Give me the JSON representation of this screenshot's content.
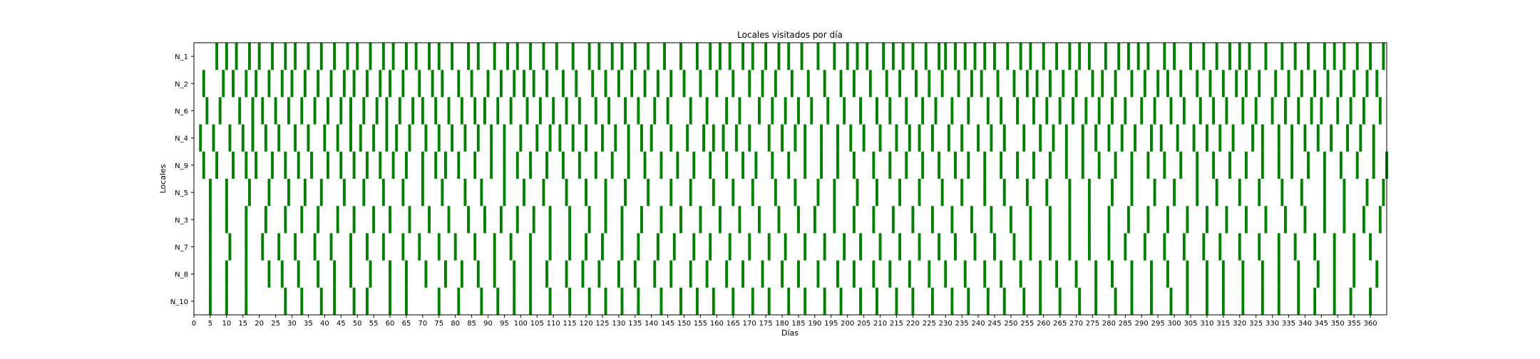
{
  "chart_data": {
    "type": "heatmap",
    "title": "Locales visitados por día",
    "xlabel": "Días",
    "ylabel": "Locales",
    "categories": [
      "N_1",
      "N_2",
      "N_6",
      "N_4",
      "N_9",
      "N_5",
      "N_3",
      "N_7",
      "N_8",
      "N_10"
    ],
    "xlim": [
      0,
      365
    ],
    "xticks": [
      0,
      5,
      10,
      15,
      20,
      25,
      30,
      35,
      40,
      45,
      50,
      55,
      60,
      65,
      70,
      75,
      80,
      85,
      90,
      95,
      100,
      105,
      110,
      115,
      120,
      125,
      130,
      135,
      140,
      145,
      150,
      155,
      160,
      165,
      170,
      175,
      180,
      185,
      190,
      195,
      200,
      205,
      210,
      215,
      220,
      225,
      230,
      235,
      240,
      245,
      250,
      255,
      260,
      265,
      270,
      275,
      280,
      285,
      290,
      295,
      300,
      305,
      310,
      315,
      320,
      325,
      330,
      335,
      340,
      345,
      350,
      355,
      360
    ],
    "bar_color": "#008000",
    "grid": false,
    "visits": {
      "N_1": [
        7,
        10,
        13,
        17,
        20,
        24,
        28,
        31,
        35,
        39,
        43,
        47,
        50,
        54,
        58,
        61,
        65,
        68,
        72,
        75,
        79,
        84,
        87,
        92,
        96,
        99,
        103,
        107,
        111,
        116,
        121,
        124,
        128,
        131,
        135,
        139,
        144,
        149,
        154,
        158,
        161,
        164,
        168,
        171,
        175,
        179,
        182,
        186,
        191,
        196,
        200,
        203,
        206,
        211,
        214,
        217,
        220,
        224,
        228,
        230,
        233,
        236,
        239,
        242,
        245,
        249,
        253,
        256,
        260,
        264,
        268,
        271,
        274,
        279,
        283,
        286,
        289,
        292,
        297,
        300,
        305,
        309,
        313,
        317,
        320,
        323,
        328,
        333,
        337,
        341,
        346,
        349,
        352,
        356,
        360,
        364
      ],
      "N_2": [
        3,
        9,
        12,
        16,
        19,
        23,
        27,
        30,
        34,
        38,
        42,
        46,
        49,
        53,
        57,
        60,
        64,
        69,
        73,
        76,
        81,
        85,
        90,
        94,
        98,
        101,
        104,
        108,
        113,
        117,
        122,
        126,
        130,
        134,
        138,
        142,
        146,
        150,
        155,
        160,
        165,
        170,
        174,
        178,
        183,
        188,
        193,
        198,
        202,
        207,
        212,
        216,
        221,
        225,
        229,
        234,
        238,
        241,
        246,
        251,
        255,
        258,
        262,
        266,
        270,
        275,
        278,
        282,
        287,
        291,
        295,
        298,
        302,
        307,
        311,
        315,
        319,
        322,
        326,
        331,
        335,
        339,
        343,
        347,
        351,
        355,
        359,
        362
      ],
      "N_6": [
        4,
        8,
        14,
        18,
        21,
        25,
        29,
        33,
        37,
        41,
        45,
        48,
        52,
        56,
        59,
        63,
        67,
        70,
        74,
        78,
        82,
        86,
        89,
        93,
        97,
        102,
        106,
        110,
        114,
        118,
        123,
        127,
        132,
        136,
        141,
        145,
        152,
        157,
        163,
        167,
        173,
        177,
        181,
        185,
        189,
        194,
        199,
        204,
        209,
        213,
        218,
        223,
        227,
        232,
        237,
        243,
        247,
        252,
        257,
        261,
        265,
        269,
        273,
        277,
        281,
        285,
        290,
        294,
        299,
        303,
        308,
        312,
        316,
        321,
        325,
        330,
        334,
        338,
        342,
        345,
        350,
        354,
        358,
        363
      ],
      "N_4": [
        2,
        6,
        11,
        15,
        18,
        22,
        26,
        31,
        35,
        40,
        44,
        48,
        51,
        55,
        59,
        62,
        66,
        71,
        75,
        79,
        83,
        87,
        91,
        95,
        100,
        105,
        109,
        112,
        116,
        120,
        125,
        129,
        133,
        137,
        140,
        146,
        151,
        156,
        159,
        162,
        166,
        170,
        176,
        180,
        184,
        187,
        192,
        197,
        201,
        205,
        210,
        215,
        219,
        222,
        226,
        231,
        235,
        240,
        244,
        248,
        254,
        259,
        263,
        267,
        272,
        276,
        280,
        284,
        288,
        293,
        296,
        301,
        306,
        310,
        314,
        318,
        324,
        327,
        332,
        336,
        340,
        344,
        348,
        353,
        357,
        361
      ],
      "N_9": [
        3,
        7,
        12,
        16,
        19,
        24,
        28,
        32,
        36,
        41,
        45,
        49,
        53,
        57,
        61,
        65,
        70,
        74,
        77,
        81,
        86,
        91,
        95,
        99,
        103,
        108,
        113,
        118,
        123,
        128,
        133,
        138,
        143,
        148,
        153,
        158,
        163,
        168,
        172,
        177,
        182,
        187,
        192,
        197,
        202,
        208,
        213,
        218,
        223,
        228,
        233,
        237,
        242,
        247,
        252,
        257,
        262,
        267,
        272,
        277,
        282,
        287,
        292,
        297,
        302,
        307,
        312,
        317,
        322,
        327,
        332,
        336,
        341,
        346,
        351,
        356,
        361,
        365
      ],
      "N_5": [
        5,
        10,
        17,
        23,
        29,
        34,
        39,
        46,
        52,
        58,
        64,
        70,
        76,
        83,
        88,
        95,
        101,
        107,
        114,
        120,
        126,
        132,
        139,
        146,
        152,
        159,
        165,
        171,
        178,
        184,
        191,
        196,
        203,
        209,
        216,
        222,
        229,
        235,
        242,
        248,
        255,
        261,
        268,
        274,
        281,
        287,
        294,
        300,
        307,
        313,
        320,
        326,
        333,
        339,
        346,
        352,
        359,
        364
      ],
      "N_3": [
        5,
        10,
        16,
        22,
        28,
        33,
        38,
        44,
        49,
        55,
        60,
        66,
        72,
        78,
        84,
        89,
        94,
        99,
        104,
        109,
        115,
        121,
        126,
        131,
        137,
        143,
        149,
        155,
        161,
        167,
        173,
        179,
        185,
        190,
        196,
        202,
        208,
        214,
        220,
        226,
        232,
        238,
        244,
        250,
        256,
        262,
        268,
        274,
        280,
        286,
        292,
        298,
        304,
        310,
        316,
        322,
        328,
        334,
        340,
        346,
        352,
        358,
        363
      ],
      "N_7": [
        5,
        11,
        16,
        21,
        26,
        31,
        37,
        42,
        48,
        53,
        58,
        64,
        69,
        75,
        80,
        86,
        92,
        97,
        103,
        109,
        115,
        120,
        125,
        131,
        136,
        142,
        147,
        153,
        158,
        164,
        170,
        176,
        181,
        187,
        193,
        199,
        204,
        210,
        216,
        222,
        228,
        233,
        239,
        245,
        251,
        256,
        262,
        268,
        274,
        280,
        285,
        291,
        297,
        303,
        309,
        314,
        320,
        326,
        332,
        337,
        343,
        349,
        355,
        360
      ],
      "N_8": [
        5,
        10,
        16,
        23,
        27,
        32,
        38,
        43,
        48,
        54,
        60,
        65,
        71,
        77,
        82,
        87,
        92,
        98,
        103,
        108,
        114,
        119,
        124,
        130,
        135,
        141,
        146,
        152,
        157,
        163,
        168,
        174,
        180,
        185,
        191,
        197,
        202,
        208,
        213,
        219,
        225,
        230,
        236,
        242,
        247,
        253,
        259,
        264,
        270,
        276,
        281,
        287,
        293,
        298,
        304,
        310,
        315,
        321,
        327,
        332,
        338,
        344,
        349,
        355,
        362
      ],
      "N_10": [
        5,
        10,
        16,
        28,
        33,
        39,
        43,
        49,
        53,
        60,
        65,
        75,
        81,
        88,
        93,
        98,
        103,
        109,
        115,
        121,
        126,
        131,
        136,
        143,
        149,
        154,
        159,
        165,
        171,
        176,
        182,
        187,
        193,
        198,
        204,
        209,
        215,
        220,
        226,
        232,
        237,
        243,
        248,
        254,
        259,
        265,
        271,
        276,
        282,
        287,
        293,
        299,
        304,
        310,
        315,
        321,
        327,
        332,
        338,
        343,
        349,
        354,
        360
      ]
    }
  }
}
